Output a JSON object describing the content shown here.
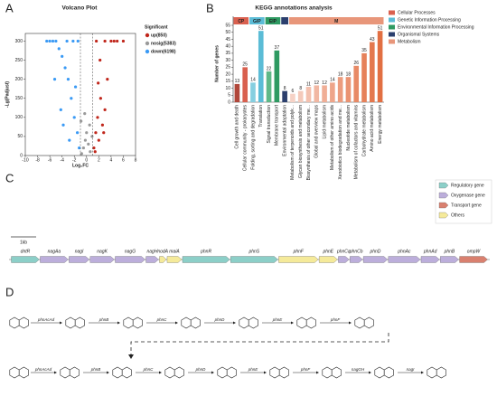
{
  "panels": [
    "A",
    "B",
    "C",
    "D"
  ],
  "chart_data": [
    {
      "type": "scatter",
      "title": "Volcano Plot",
      "x_label": "Log₂FC",
      "y_label": "-Lg(Padjust)",
      "xlim": [
        -10,
        8
      ],
      "xticks": [
        -10,
        -8,
        -6,
        -4,
        -2,
        0,
        2,
        4,
        6,
        8
      ],
      "ylim": [
        0,
        320
      ],
      "yticks": [
        0,
        50,
        100,
        150,
        200,
        250,
        300
      ],
      "thresholds": [
        -1,
        1
      ],
      "legend_title": "Significant",
      "series": [
        {
          "name": "up(850)",
          "color": "#c0261b",
          "x": [
            1.2,
            1.5,
            1.8,
            2.0,
            2.3,
            2.6,
            3.0,
            3.4,
            4.0,
            5.0,
            1.6,
            2.2,
            3.0,
            4.5,
            6.0,
            1.4,
            2.8,
            1.9
          ],
          "values": [
            20,
            60,
            100,
            40,
            150,
            80,
            300,
            200,
            300,
            300,
            300,
            250,
            120,
            300,
            300,
            10,
            60,
            190
          ]
        },
        {
          "name": "nosig(5383)",
          "color": "#9a9a9a",
          "x": [
            -0.8,
            -0.5,
            -0.2,
            0,
            0.3,
            0.6,
            0.9,
            -0.9,
            0.5,
            -0.3
          ],
          "values": [
            5,
            20,
            40,
            60,
            30,
            10,
            50,
            90,
            80,
            110
          ]
        },
        {
          "name": "down(6198)",
          "color": "#3a9af5",
          "x": [
            -1.2,
            -1.5,
            -2.0,
            -2.5,
            -3.0,
            -3.5,
            -4.0,
            -4.5,
            -5.0,
            -5.5,
            -6.0,
            -2.2,
            -3.2,
            -1.8,
            -4.2,
            -6.5,
            -3.8,
            -2.8,
            -5.2,
            -1.4
          ],
          "values": [
            20,
            60,
            100,
            150,
            200,
            230,
            260,
            280,
            300,
            300,
            300,
            300,
            300,
            180,
            120,
            300,
            80,
            40,
            200,
            300
          ]
        }
      ]
    },
    {
      "type": "bar",
      "title": "KEGG annotations analysis",
      "y_label": "Number of genes",
      "ylim": [
        0,
        55
      ],
      "yticks": [
        0,
        5,
        10,
        15,
        20,
        25,
        30,
        35,
        40,
        45,
        50,
        55
      ],
      "groups": [
        {
          "name": "CP",
          "color": "#d9604f",
          "categories": [
            "Cell growth and death",
            "Cellular community - prokaryotes"
          ],
          "values": [
            13,
            25
          ],
          "colors": [
            "#b0473a",
            "#d9604f"
          ]
        },
        {
          "name": "GIP",
          "color": "#5bbcd6",
          "categories": [
            "Folding, sorting and degradation",
            "Translation"
          ],
          "values": [
            14,
            51
          ],
          "colors": [
            "#86cfe0",
            "#5bbcd6"
          ]
        },
        {
          "name": "EIP",
          "color": "#2e9a62",
          "categories": [
            "Signal transduction",
            "Membrane transport"
          ],
          "values": [
            22,
            37
          ],
          "colors": [
            "#5fb887",
            "#2e9a62"
          ]
        },
        {
          "color": "#2b3f6e",
          "categories": [
            "Environmental adaptation"
          ],
          "values": [
            8
          ],
          "colors": [
            "#2b3f6e"
          ]
        },
        {
          "name": "M",
          "color": "#e8967a",
          "categories": [
            "Metabolism of terpenoids and polyk...",
            "Glycan biosynthesis and metabolism",
            "Biosynthesis of other secondary me...",
            "Global and overview maps",
            "Lipid metabolism",
            "Metabolism of other amino acids",
            "Xenobiotics biodegradation and me...",
            "Nucleotide metabolism",
            "Metabolism of cofactors and vitamins",
            "Carbohydrate metabolism",
            "Amino acid metabolism",
            "Energy metabolism"
          ],
          "values": [
            6,
            8,
            11,
            12,
            12,
            14,
            18,
            18,
            26,
            35,
            43,
            51
          ],
          "colors": [
            "#f6d2c6",
            "#f4c9ba",
            "#f3c0ae",
            "#f1b7a2",
            "#f0ae96",
            "#eea58a",
            "#ec9c7e",
            "#ea9372",
            "#e88a66",
            "#e6815a",
            "#e4784e",
            "#e26f42"
          ]
        }
      ],
      "legend": [
        {
          "label": "Cellular Processes",
          "color": "#d9604f"
        },
        {
          "label": "Genetic Information Processing",
          "color": "#5bbcd6"
        },
        {
          "label": "Environmental Information Processing",
          "color": "#2e9a62"
        },
        {
          "label": "Organismal Systems",
          "color": "#2b3f6e"
        },
        {
          "label": "Metabolism",
          "color": "#e8967a"
        }
      ]
    }
  ],
  "gene_map": {
    "scale": "1kb",
    "legend": [
      {
        "label": "Regulatory gene",
        "color": "#8ccfc8"
      },
      {
        "label": "Oxygenase gene",
        "color": "#bcaedb"
      },
      {
        "label": "Transport gene",
        "color": "#d9806f"
      },
      {
        "label": "Others",
        "color": "#f5ea9a"
      }
    ],
    "genes": [
      {
        "name": "dntR",
        "color": "#8ccfc8"
      },
      {
        "name": "nagAa",
        "color": "#bcaedb"
      },
      {
        "name": "nagI",
        "color": "#bcaedb"
      },
      {
        "name": "nagK",
        "color": "#bcaedb"
      },
      {
        "name": "nagG",
        "color": "#bcaedb"
      },
      {
        "name": "nagH",
        "color": "#bcaedb"
      },
      {
        "name": "nodA",
        "color": "#f5ea9a"
      },
      {
        "name": "maiA",
        "color": "#f5ea9a"
      },
      {
        "name": "phnR",
        "color": "#8ccfc8"
      },
      {
        "name": "phnS",
        "color": "#8ccfc8"
      },
      {
        "name": "phnF",
        "color": "#f5ea9a"
      },
      {
        "name": "phnE",
        "color": "#f5ea9a"
      },
      {
        "name": "phnCa",
        "color": "#bcaedb"
      },
      {
        "name": "phnCb",
        "color": "#bcaedb"
      },
      {
        "name": "phnD",
        "color": "#bcaedb"
      },
      {
        "name": "phnAc",
        "color": "#bcaedb"
      },
      {
        "name": "phnAd",
        "color": "#bcaedb"
      },
      {
        "name": "phnB",
        "color": "#bcaedb"
      },
      {
        "name": "ompW",
        "color": "#d9806f"
      }
    ]
  },
  "pathway": {
    "row1": [
      "phnAcAd",
      "phnB",
      "phnC",
      "phnD",
      "phnE",
      "phnF"
    ],
    "row2": [
      "phnAcAd",
      "phnB",
      "phnC",
      "phnD",
      "phnE",
      "phnF",
      "nagGH",
      "nagI"
    ]
  }
}
